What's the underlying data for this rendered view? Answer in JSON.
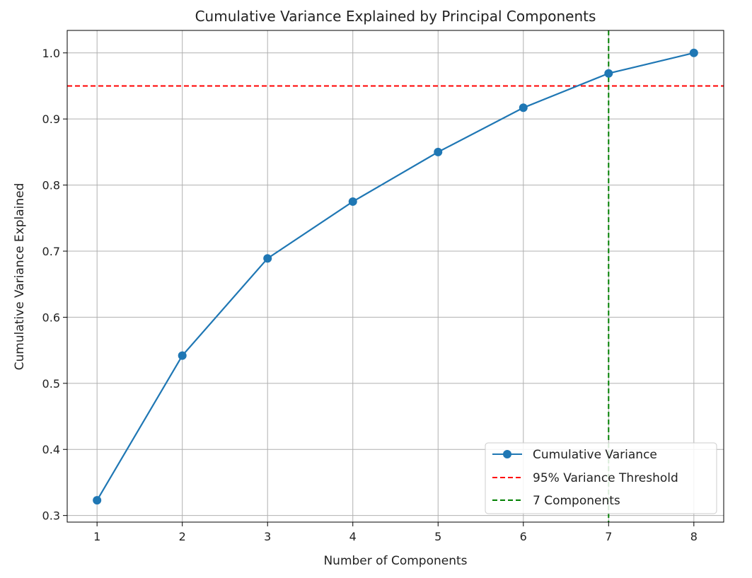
{
  "chart_data": {
    "type": "line",
    "title": "Cumulative Variance Explained by Principal Components",
    "xlabel": "Number of Components",
    "ylabel": "Cumulative Variance Explained",
    "x": [
      1,
      2,
      3,
      4,
      5,
      6,
      7,
      8
    ],
    "xlim": [
      0.65,
      8.35
    ],
    "ylim": [
      0.29,
      1.034
    ],
    "xticks": [
      "1",
      "2",
      "3",
      "4",
      "5",
      "6",
      "7",
      "8"
    ],
    "yticks": [
      "0.3",
      "0.4",
      "0.5",
      "0.6",
      "0.7",
      "0.8",
      "0.9",
      "1.0"
    ],
    "grid": true,
    "legend_position": "lower-right",
    "series": [
      {
        "name": "Cumulative Variance",
        "values": [
          0.323,
          0.542,
          0.689,
          0.775,
          0.85,
          0.917,
          0.969,
          1.0
        ],
        "color": "#1f77b4",
        "marker": "circle",
        "style": "solid"
      }
    ],
    "reference_lines": [
      {
        "orientation": "horizontal",
        "value": 0.95,
        "name": "95% Variance Threshold",
        "color": "#ff0000",
        "style": "dashed"
      },
      {
        "orientation": "vertical",
        "value": 7,
        "name": "7 Components",
        "color": "#008000",
        "style": "dashed"
      }
    ]
  }
}
